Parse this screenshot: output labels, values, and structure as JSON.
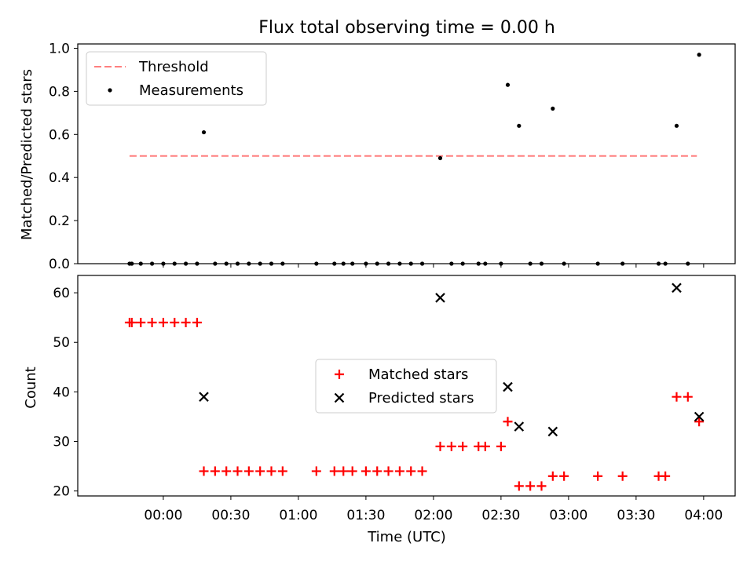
{
  "chart_data": [
    {
      "type": "scatter",
      "title": "Flux total observing time = 0.00 h",
      "ylabel": "Matched/Predicted stars",
      "xlabel": "",
      "xlim": [
        "23:22",
        "04:14"
      ],
      "ylim": [
        0,
        1.02
      ],
      "yticks": [
        "0.0",
        "0.2",
        "0.4",
        "0.6",
        "0.8",
        "1.0"
      ],
      "legend": {
        "placement": "top-left",
        "entries": [
          "Threshold",
          "Measurements"
        ]
      },
      "threshold": {
        "name": "Threshold",
        "y": 0.5,
        "x_start": "23:45",
        "x_end": "03:57",
        "color": "#ff7f7f",
        "style": "dashed"
      },
      "series": [
        {
          "name": "Measurements",
          "color": "#000000",
          "marker": "dot",
          "points": [
            [
              "23:45",
              0
            ],
            [
              "23:46",
              0
            ],
            [
              "23:50",
              0
            ],
            [
              "23:55",
              0
            ],
            [
              "00:00",
              0
            ],
            [
              "00:05",
              0
            ],
            [
              "00:10",
              0
            ],
            [
              "00:15",
              0
            ],
            [
              "00:18",
              0.61
            ],
            [
              "00:23",
              0
            ],
            [
              "00:28",
              0
            ],
            [
              "00:33",
              0
            ],
            [
              "00:38",
              0
            ],
            [
              "00:43",
              0
            ],
            [
              "00:48",
              0
            ],
            [
              "00:53",
              0
            ],
            [
              "01:08",
              0
            ],
            [
              "01:16",
              0
            ],
            [
              "01:20",
              0
            ],
            [
              "01:24",
              0
            ],
            [
              "01:30",
              0
            ],
            [
              "01:35",
              0
            ],
            [
              "01:40",
              0
            ],
            [
              "01:45",
              0
            ],
            [
              "01:50",
              0
            ],
            [
              "01:55",
              0
            ],
            [
              "02:03",
              0.49
            ],
            [
              "02:08",
              0
            ],
            [
              "02:13",
              0
            ],
            [
              "02:20",
              0
            ],
            [
              "02:23",
              0
            ],
            [
              "02:30",
              0
            ],
            [
              "02:33",
              0.83
            ],
            [
              "02:38",
              0.64
            ],
            [
              "02:43",
              0
            ],
            [
              "02:48",
              0
            ],
            [
              "02:53",
              0.72
            ],
            [
              "02:58",
              0
            ],
            [
              "03:13",
              0
            ],
            [
              "03:24",
              0
            ],
            [
              "03:40",
              0
            ],
            [
              "03:43",
              0
            ],
            [
              "03:48",
              0.64
            ],
            [
              "03:53",
              0
            ],
            [
              "03:58",
              0.97
            ]
          ]
        }
      ]
    },
    {
      "type": "scatter",
      "title": "",
      "ylabel": "Count",
      "xlabel": "Time (UTC)",
      "xlim": [
        "23:22",
        "04:14"
      ],
      "ylim": [
        19,
        63.5
      ],
      "yticks": [
        "20",
        "30",
        "40",
        "50",
        "60"
      ],
      "xticks": [
        "00:00",
        "00:30",
        "01:00",
        "01:30",
        "02:00",
        "02:30",
        "03:00",
        "03:30",
        "04:00"
      ],
      "legend": {
        "placement": "center",
        "entries": [
          "Matched stars",
          "Predicted stars"
        ]
      },
      "series": [
        {
          "name": "Matched stars",
          "color": "#ff0000",
          "marker": "plus",
          "points": [
            [
              "23:45",
              54
            ],
            [
              "23:46",
              54
            ],
            [
              "23:50",
              54
            ],
            [
              "23:55",
              54
            ],
            [
              "00:00",
              54
            ],
            [
              "00:05",
              54
            ],
            [
              "00:10",
              54
            ],
            [
              "00:15",
              54
            ],
            [
              "00:18",
              24
            ],
            [
              "00:23",
              24
            ],
            [
              "00:28",
              24
            ],
            [
              "00:33",
              24
            ],
            [
              "00:38",
              24
            ],
            [
              "00:43",
              24
            ],
            [
              "00:48",
              24
            ],
            [
              "00:53",
              24
            ],
            [
              "01:08",
              24
            ],
            [
              "01:16",
              24
            ],
            [
              "01:20",
              24
            ],
            [
              "01:24",
              24
            ],
            [
              "01:30",
              24
            ],
            [
              "01:35",
              24
            ],
            [
              "01:40",
              24
            ],
            [
              "01:45",
              24
            ],
            [
              "01:50",
              24
            ],
            [
              "01:55",
              24
            ],
            [
              "02:03",
              29
            ],
            [
              "02:08",
              29
            ],
            [
              "02:13",
              29
            ],
            [
              "02:20",
              29
            ],
            [
              "02:23",
              29
            ],
            [
              "02:30",
              29
            ],
            [
              "02:33",
              34
            ],
            [
              "02:38",
              21
            ],
            [
              "02:43",
              21
            ],
            [
              "02:48",
              21
            ],
            [
              "02:53",
              23
            ],
            [
              "02:58",
              23
            ],
            [
              "03:13",
              23
            ],
            [
              "03:24",
              23
            ],
            [
              "03:40",
              23
            ],
            [
              "03:43",
              23
            ],
            [
              "03:48",
              39
            ],
            [
              "03:53",
              39
            ],
            [
              "03:58",
              34
            ]
          ]
        },
        {
          "name": "Predicted stars",
          "color": "#000000",
          "marker": "cross",
          "points": [
            [
              "00:18",
              39
            ],
            [
              "02:03",
              59
            ],
            [
              "02:33",
              41
            ],
            [
              "02:38",
              33
            ],
            [
              "02:53",
              32
            ],
            [
              "03:48",
              61
            ],
            [
              "03:58",
              35
            ]
          ]
        }
      ]
    }
  ]
}
